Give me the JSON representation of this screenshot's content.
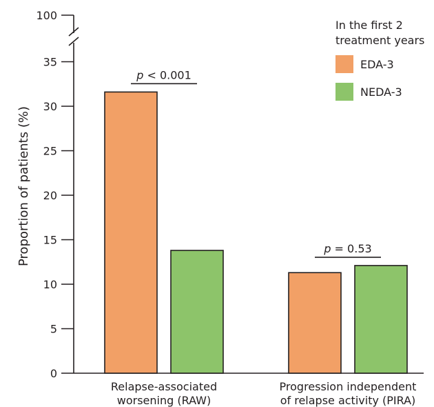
{
  "chart_data": {
    "type": "bar",
    "ylabel": "Proportion of patients (%)",
    "categories": [
      [
        "Relapse-associated",
        "worsening (RAW)"
      ],
      [
        "Progression independent",
        "of relapse activity (PIRA)"
      ]
    ],
    "series": [
      {
        "name": "EDA-3",
        "color": "#f2a066",
        "values": [
          31.6,
          11.3
        ]
      },
      {
        "name": "NEDA-3",
        "color": "#8dc46a",
        "values": [
          13.8,
          12.1
        ]
      }
    ],
    "yticks": [
      0,
      5,
      10,
      15,
      20,
      25,
      30,
      35
    ],
    "ylim": [
      0,
      35
    ],
    "axis_break": true,
    "axis_top_label": "100",
    "legend": {
      "title": [
        "In the first 2",
        "treatment years"
      ],
      "placement": "top-right"
    },
    "annotations": [
      {
        "prefix": "p",
        "text": " < 0.001",
        "category": 0
      },
      {
        "prefix": "p",
        "text": " = 0.53",
        "category": 1
      }
    ],
    "grid": false
  }
}
